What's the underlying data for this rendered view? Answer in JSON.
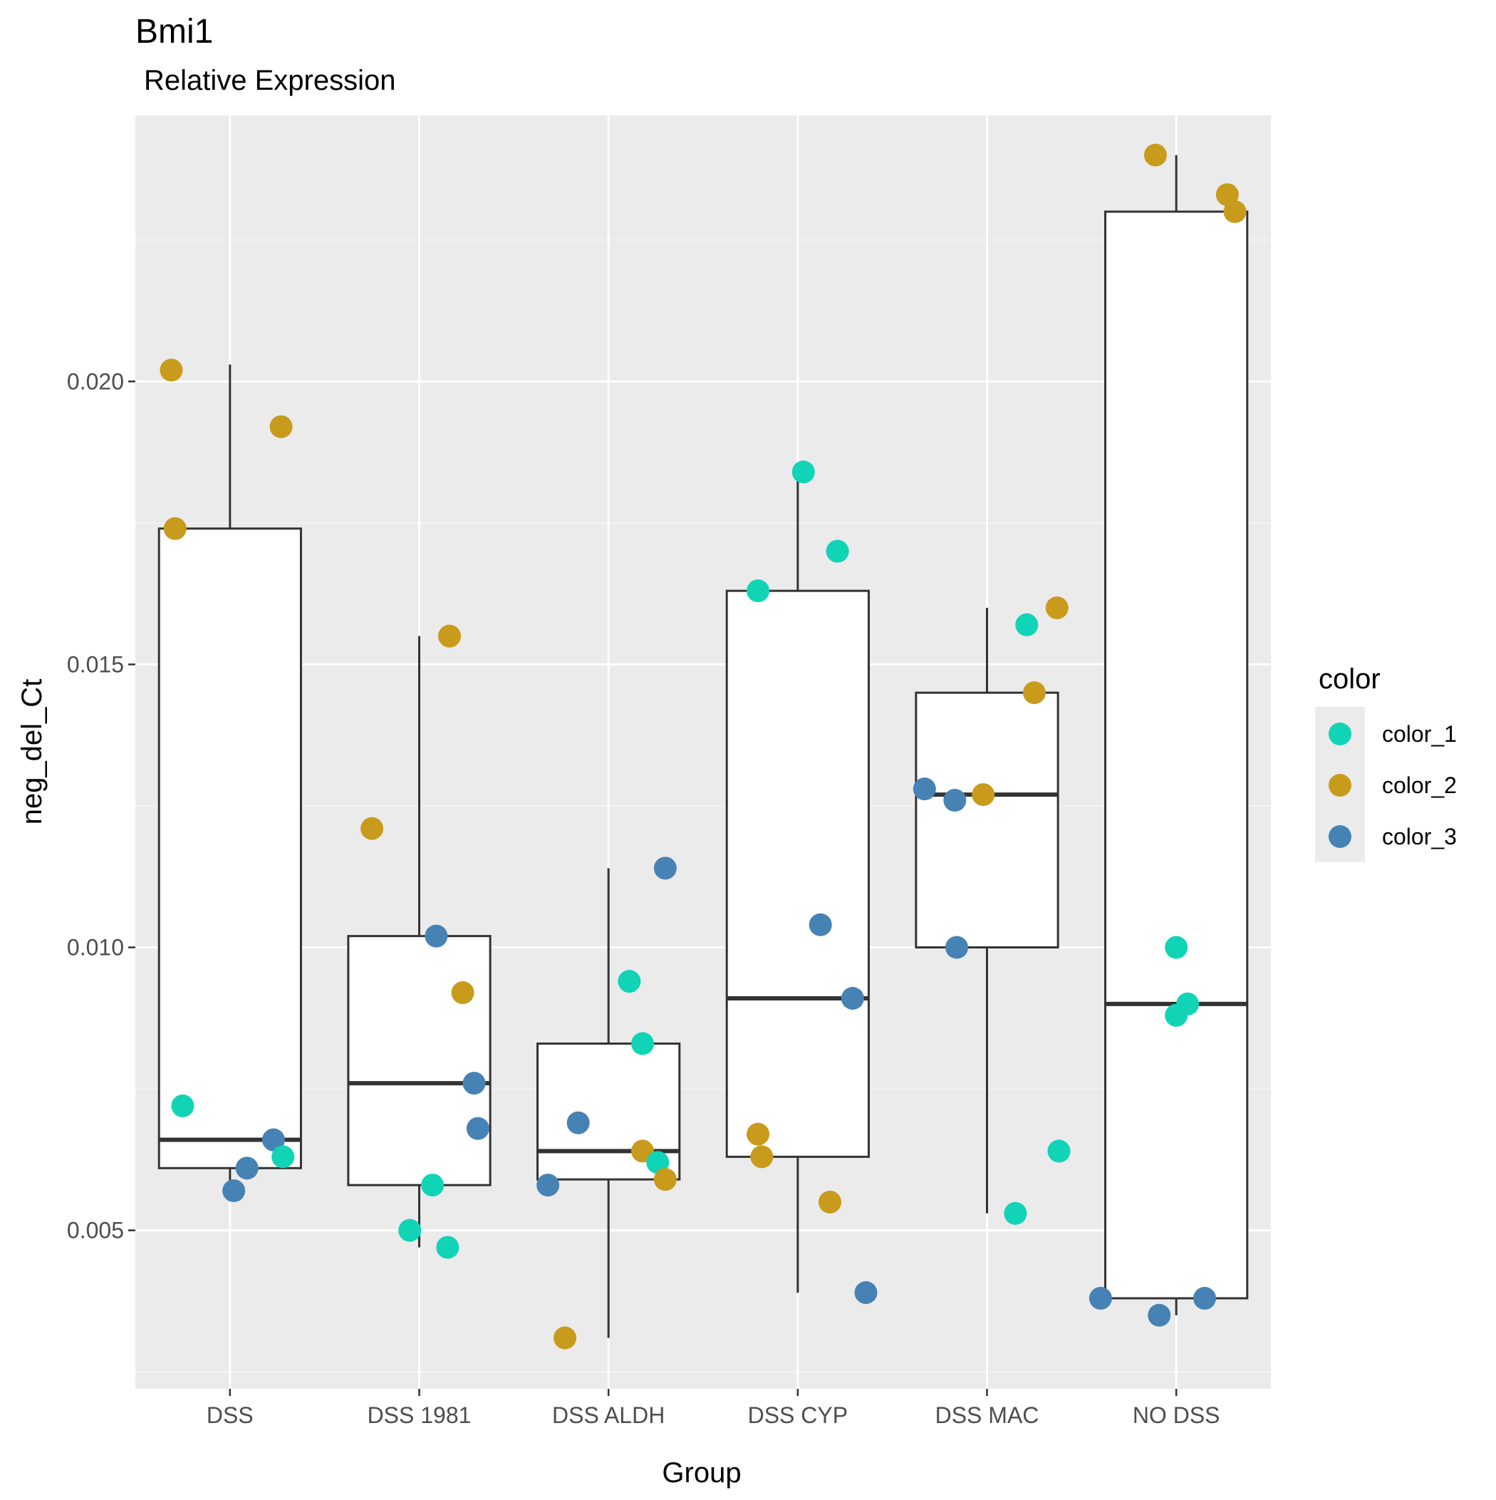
{
  "colors": {
    "panel_background": "#EBEBEB",
    "grid_major": "#FFFFFF",
    "grid_minor": "#F5F5F5",
    "box_outline": "#333333",
    "box_fill": "#FFFFFF",
    "axis_text": "#4D4D4D",
    "title_text": "#000000",
    "legend_key_background": "#EBEBEB"
  },
  "chart_data": {
    "type": "box",
    "title": "Bmi1",
    "subtitle": "Relative Expression",
    "xlabel": "Group",
    "ylabel": "neg_del_Ct",
    "categories": [
      "DSS",
      "DSS 1981",
      "DSS ALDH",
      "DSS CYP",
      "DSS MAC",
      "NO DSS"
    ],
    "ylim": [
      0.0022,
      0.0247
    ],
    "y_ticks": [
      0.005,
      0.01,
      0.015,
      0.02
    ],
    "y_tick_labels": [
      "0.005",
      "0.010",
      "0.015",
      "0.020"
    ],
    "y_minor_ticks": [
      0.0025,
      0.0075,
      0.0125,
      0.0175,
      0.0225
    ],
    "grid": true,
    "legend": {
      "title": "color",
      "placement": "right",
      "entries": [
        {
          "label": "color_1",
          "color": "#11D3B6"
        },
        {
          "label": "color_2",
          "color": "#C89B1C"
        },
        {
          "label": "color_3",
          "color": "#4682B4"
        }
      ]
    },
    "boxes": [
      {
        "category": "DSS",
        "lower": 0.0057,
        "q1": 0.0061,
        "median": 0.0066,
        "q3": 0.0174,
        "upper": 0.0203
      },
      {
        "category": "DSS 1981",
        "lower": 0.0047,
        "q1": 0.0058,
        "median": 0.0076,
        "q3": 0.0102,
        "upper": 0.0155
      },
      {
        "category": "DSS ALDH",
        "lower": 0.0031,
        "q1": 0.0059,
        "median": 0.0064,
        "q3": 0.0083,
        "upper": 0.0114
      },
      {
        "category": "DSS CYP",
        "lower": 0.0039,
        "q1": 0.0063,
        "median": 0.0091,
        "q3": 0.0163,
        "upper": 0.0184
      },
      {
        "category": "DSS MAC",
        "lower": 0.0053,
        "q1": 0.01,
        "median": 0.0127,
        "q3": 0.0145,
        "upper": 0.016
      },
      {
        "category": "NO DSS",
        "lower": 0.0035,
        "q1": 0.0038,
        "median": 0.009,
        "q3": 0.023,
        "upper": 0.024
      }
    ],
    "points": [
      {
        "category": "DSS",
        "series": "color_2",
        "y": 0.0202,
        "jitter": -0.31
      },
      {
        "category": "DSS",
        "series": "color_2",
        "y": 0.0192,
        "jitter": 0.27
      },
      {
        "category": "DSS",
        "series": "color_2",
        "y": 0.0174,
        "jitter": -0.29
      },
      {
        "category": "DSS",
        "series": "color_1",
        "y": 0.0072,
        "jitter": -0.25
      },
      {
        "category": "DSS",
        "series": "color_3",
        "y": 0.0066,
        "jitter": 0.23
      },
      {
        "category": "DSS",
        "series": "color_1",
        "y": 0.0063,
        "jitter": 0.28
      },
      {
        "category": "DSS",
        "series": "color_3",
        "y": 0.0061,
        "jitter": 0.09
      },
      {
        "category": "DSS",
        "series": "color_3",
        "y": 0.0057,
        "jitter": 0.02
      },
      {
        "category": "DSS 1981",
        "series": "color_2",
        "y": 0.0155,
        "jitter": 0.16
      },
      {
        "category": "DSS 1981",
        "series": "color_2",
        "y": 0.0121,
        "jitter": -0.25
      },
      {
        "category": "DSS 1981",
        "series": "color_3",
        "y": 0.0102,
        "jitter": 0.09
      },
      {
        "category": "DSS 1981",
        "series": "color_2",
        "y": 0.0092,
        "jitter": 0.23
      },
      {
        "category": "DSS 1981",
        "series": "color_3",
        "y": 0.0076,
        "jitter": 0.29
      },
      {
        "category": "DSS 1981",
        "series": "color_3",
        "y": 0.0068,
        "jitter": 0.31
      },
      {
        "category": "DSS 1981",
        "series": "color_1",
        "y": 0.0058,
        "jitter": 0.07
      },
      {
        "category": "DSS 1981",
        "series": "color_1",
        "y": 0.005,
        "jitter": -0.05
      },
      {
        "category": "DSS 1981",
        "series": "color_1",
        "y": 0.0047,
        "jitter": 0.15
      },
      {
        "category": "DSS ALDH",
        "series": "color_3",
        "y": 0.0114,
        "jitter": 0.3
      },
      {
        "category": "DSS ALDH",
        "series": "color_1",
        "y": 0.0094,
        "jitter": 0.11
      },
      {
        "category": "DSS ALDH",
        "series": "color_1",
        "y": 0.0083,
        "jitter": 0.18
      },
      {
        "category": "DSS ALDH",
        "series": "color_3",
        "y": 0.0069,
        "jitter": -0.16
      },
      {
        "category": "DSS ALDH",
        "series": "color_2",
        "y": 0.0064,
        "jitter": 0.18
      },
      {
        "category": "DSS ALDH",
        "series": "color_1",
        "y": 0.0062,
        "jitter": 0.26
      },
      {
        "category": "DSS ALDH",
        "series": "color_2",
        "y": 0.0059,
        "jitter": 0.3
      },
      {
        "category": "DSS ALDH",
        "series": "color_3",
        "y": 0.0058,
        "jitter": -0.32
      },
      {
        "category": "DSS ALDH",
        "series": "color_2",
        "y": 0.0031,
        "jitter": -0.23
      },
      {
        "category": "DSS CYP",
        "series": "color_1",
        "y": 0.0184,
        "jitter": 0.03
      },
      {
        "category": "DSS CYP",
        "series": "color_1",
        "y": 0.017,
        "jitter": 0.21
      },
      {
        "category": "DSS CYP",
        "series": "color_1",
        "y": 0.0163,
        "jitter": -0.21
      },
      {
        "category": "DSS CYP",
        "series": "color_3",
        "y": 0.0104,
        "jitter": 0.12
      },
      {
        "category": "DSS CYP",
        "series": "color_3",
        "y": 0.0091,
        "jitter": 0.29
      },
      {
        "category": "DSS CYP",
        "series": "color_2",
        "y": 0.0067,
        "jitter": -0.21
      },
      {
        "category": "DSS CYP",
        "series": "color_2",
        "y": 0.0063,
        "jitter": -0.19
      },
      {
        "category": "DSS CYP",
        "series": "color_2",
        "y": 0.0055,
        "jitter": 0.17
      },
      {
        "category": "DSS CYP",
        "series": "color_3",
        "y": 0.0039,
        "jitter": 0.36
      },
      {
        "category": "DSS MAC",
        "series": "color_2",
        "y": 0.016,
        "jitter": 0.37
      },
      {
        "category": "DSS MAC",
        "series": "color_1",
        "y": 0.0157,
        "jitter": 0.21
      },
      {
        "category": "DSS MAC",
        "series": "color_2",
        "y": 0.0145,
        "jitter": 0.25
      },
      {
        "category": "DSS MAC",
        "series": "color_3",
        "y": 0.0128,
        "jitter": -0.33
      },
      {
        "category": "DSS MAC",
        "series": "color_2",
        "y": 0.0127,
        "jitter": -0.02
      },
      {
        "category": "DSS MAC",
        "series": "color_3",
        "y": 0.0126,
        "jitter": -0.17
      },
      {
        "category": "DSS MAC",
        "series": "color_3",
        "y": 0.01,
        "jitter": -0.16
      },
      {
        "category": "DSS MAC",
        "series": "color_1",
        "y": 0.0064,
        "jitter": 0.38
      },
      {
        "category": "DSS MAC",
        "series": "color_1",
        "y": 0.0053,
        "jitter": 0.15
      },
      {
        "category": "NO DSS",
        "series": "color_2",
        "y": 0.024,
        "jitter": -0.11
      },
      {
        "category": "NO DSS",
        "series": "color_2",
        "y": 0.0233,
        "jitter": 0.27
      },
      {
        "category": "NO DSS",
        "series": "color_2",
        "y": 0.023,
        "jitter": 0.31
      },
      {
        "category": "NO DSS",
        "series": "color_1",
        "y": 0.01,
        "jitter": 0.0
      },
      {
        "category": "NO DSS",
        "series": "color_1",
        "y": 0.009,
        "jitter": 0.06
      },
      {
        "category": "NO DSS",
        "series": "color_1",
        "y": 0.0088,
        "jitter": 0.0
      },
      {
        "category": "NO DSS",
        "series": "color_3",
        "y": 0.0038,
        "jitter": -0.4
      },
      {
        "category": "NO DSS",
        "series": "color_3",
        "y": 0.0038,
        "jitter": 0.15
      },
      {
        "category": "NO DSS",
        "series": "color_3",
        "y": 0.0035,
        "jitter": -0.09
      }
    ]
  }
}
